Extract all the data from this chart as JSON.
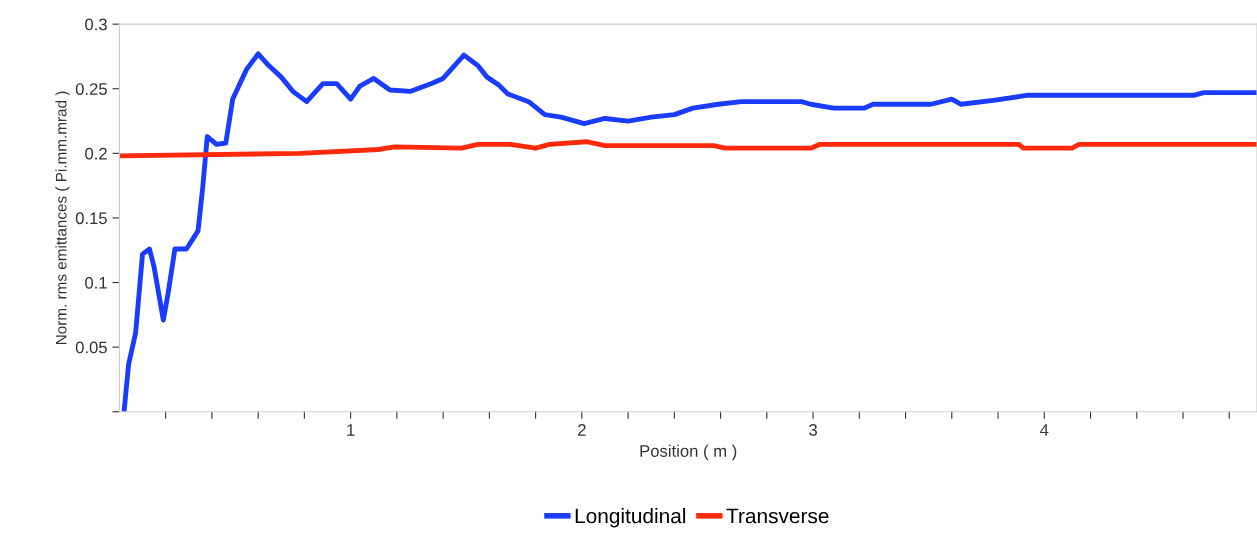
{
  "chart_data": {
    "type": "line",
    "xlabel": "Position ( m )",
    "ylabel": "Norm. rms emittances ( Pi.mm.mrad )",
    "xlim": [
      0,
      4.92
    ],
    "ylim": [
      0,
      0.3
    ],
    "xticks": [
      {
        "value": 0.2,
        "label": null
      },
      {
        "value": 0.4,
        "label": null
      },
      {
        "value": 0.6,
        "label": null
      },
      {
        "value": 0.8,
        "label": null
      },
      1,
      {
        "value": 1.2,
        "label": null
      },
      {
        "value": 1.4,
        "label": null
      },
      {
        "value": 1.6,
        "label": null
      },
      {
        "value": 1.8,
        "label": null
      },
      2,
      {
        "value": 2.2,
        "label": null
      },
      {
        "value": 2.4,
        "label": null
      },
      {
        "value": 2.6,
        "label": null
      },
      {
        "value": 2.8,
        "label": null
      },
      3,
      {
        "value": 3.2,
        "label": null
      },
      {
        "value": 3.4,
        "label": null
      },
      {
        "value": 3.6,
        "label": null
      },
      {
        "value": 3.8,
        "label": null
      },
      4,
      {
        "value": 4.2,
        "label": null
      },
      {
        "value": 4.4,
        "label": null
      },
      {
        "value": 4.6,
        "label": null
      },
      {
        "value": 4.8,
        "label": null
      }
    ],
    "yticks": [
      {
        "value": 0,
        "label": null
      },
      0.05,
      0.1,
      0.15,
      0.2,
      0.25,
      0.3
    ],
    "grid": false,
    "legend": "bottom",
    "marker": "none",
    "line_style": "solid",
    "series": [
      {
        "name": "Longitudinal",
        "color": "#1a3cff",
        "x": [
          0.02,
          0.04,
          0.07,
          0.1,
          0.13,
          0.15,
          0.19,
          0.21,
          0.24,
          0.29,
          0.34,
          0.36,
          0.38,
          0.42,
          0.46,
          0.49,
          0.55,
          0.6,
          0.64,
          0.7,
          0.75,
          0.81,
          0.88,
          0.94,
          1.0,
          1.04,
          1.1,
          1.17,
          1.26,
          1.35,
          1.4,
          1.49,
          1.55,
          1.59,
          1.64,
          1.68,
          1.77,
          1.84,
          1.91,
          2.01,
          2.1,
          2.2,
          2.3,
          2.4,
          2.48,
          2.59,
          2.69,
          2.95,
          2.99,
          3.09,
          3.22,
          3.26,
          3.37,
          3.51,
          3.6,
          3.64,
          3.78,
          3.93,
          4.65,
          4.69,
          4.92
        ],
        "values": [
          0.0,
          0.037,
          0.061,
          0.122,
          0.126,
          0.112,
          0.071,
          0.091,
          0.126,
          0.126,
          0.14,
          0.173,
          0.213,
          0.207,
          0.208,
          0.242,
          0.265,
          0.277,
          0.269,
          0.259,
          0.248,
          0.24,
          0.254,
          0.254,
          0.242,
          0.252,
          0.258,
          0.249,
          0.248,
          0.254,
          0.258,
          0.276,
          0.268,
          0.259,
          0.253,
          0.246,
          0.24,
          0.23,
          0.228,
          0.223,
          0.227,
          0.225,
          0.228,
          0.23,
          0.235,
          0.238,
          0.24,
          0.24,
          0.238,
          0.235,
          0.235,
          0.238,
          0.238,
          0.238,
          0.242,
          0.238,
          0.241,
          0.245,
          0.245,
          0.247,
          0.247
        ]
      },
      {
        "name": "Transverse",
        "color": "#ff2a0a",
        "x": [
          0.0,
          0.78,
          1.12,
          1.19,
          1.48,
          1.55,
          1.69,
          1.8,
          1.86,
          2.02,
          2.1,
          2.57,
          2.62,
          2.99,
          3.03,
          3.89,
          3.91,
          4.12,
          4.15,
          4.92
        ],
        "values": [
          0.198,
          0.2,
          0.203,
          0.205,
          0.204,
          0.207,
          0.207,
          0.204,
          0.207,
          0.209,
          0.206,
          0.206,
          0.204,
          0.204,
          0.207,
          0.207,
          0.204,
          0.204,
          0.207,
          0.207
        ]
      }
    ]
  }
}
